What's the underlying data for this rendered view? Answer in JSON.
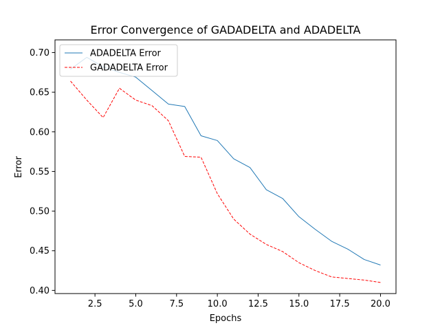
{
  "chart_data": {
    "type": "line",
    "title": "Error Convergence of GADADELTA and ADADELTA",
    "xlabel": "Epochs",
    "ylabel": "Error",
    "xlim": [
      0.05,
      20.95
    ],
    "ylim": [
      0.396,
      0.716
    ],
    "xticks": [
      2.5,
      5.0,
      7.5,
      10.0,
      12.5,
      15.0,
      17.5,
      20.0
    ],
    "xtick_labels": [
      "2.5",
      "5.0",
      "7.5",
      "10.0",
      "12.5",
      "15.0",
      "17.5",
      "20.0"
    ],
    "yticks": [
      0.4,
      0.45,
      0.5,
      0.55,
      0.6,
      0.65,
      0.7
    ],
    "ytick_labels": [
      "0.40",
      "0.45",
      "0.50",
      "0.55",
      "0.60",
      "0.65",
      "0.70"
    ],
    "grid": false,
    "legend_position": "top-left",
    "x": [
      1,
      2,
      3,
      4,
      5,
      6,
      7,
      8,
      9,
      10,
      11,
      12,
      13,
      14,
      15,
      16,
      17,
      18,
      19,
      20
    ],
    "series": [
      {
        "name": "ADADELTA Error",
        "color": "#1f77b4",
        "style": "solid",
        "values": [
          0.679,
          0.694,
          0.682,
          0.675,
          0.669,
          0.652,
          0.635,
          0.632,
          0.595,
          0.589,
          0.566,
          0.555,
          0.527,
          0.516,
          0.493,
          0.477,
          0.462,
          0.452,
          0.439,
          0.432
        ]
      },
      {
        "name": "GADADELTA Error",
        "color": "#ff0000",
        "style": "dashed",
        "values": [
          0.664,
          0.64,
          0.618,
          0.655,
          0.64,
          0.633,
          0.614,
          0.569,
          0.568,
          0.522,
          0.49,
          0.471,
          0.458,
          0.449,
          0.435,
          0.425,
          0.417,
          0.415,
          0.413,
          0.41
        ]
      }
    ]
  }
}
